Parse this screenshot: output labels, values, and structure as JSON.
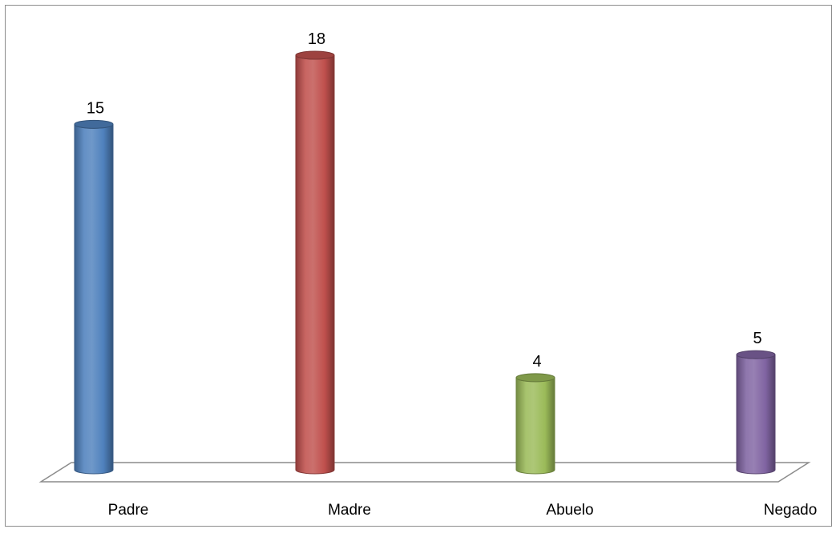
{
  "chart_data": {
    "type": "bar",
    "style": "3d-cylinder",
    "title": "",
    "xlabel": "",
    "ylabel": "",
    "categories": [
      "Padre",
      "Madre",
      "Abuelo",
      "Negado"
    ],
    "values": [
      15,
      18,
      4,
      5
    ],
    "data_labels": [
      "15",
      "18",
      "4",
      "5"
    ],
    "colors": [
      "#4f81bd",
      "#c0504d",
      "#9bbb59",
      "#8064a2"
    ],
    "ylim": [
      0,
      18
    ],
    "grid": false,
    "legend": "none"
  }
}
